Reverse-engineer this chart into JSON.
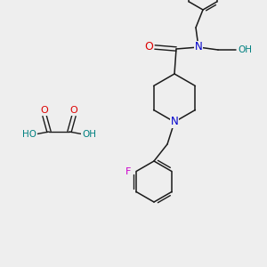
{
  "bg_color": "#eeeeee",
  "bond_color": "#1a1a1a",
  "atom_colors": {
    "O": "#dd0000",
    "N": "#0000cc",
    "F": "#cc00cc",
    "HO": "#008080",
    "OH": "#008080",
    "H": "#008080",
    "C": "#1a1a1a"
  },
  "fig_width": 3.0,
  "fig_height": 3.0,
  "dpi": 100
}
